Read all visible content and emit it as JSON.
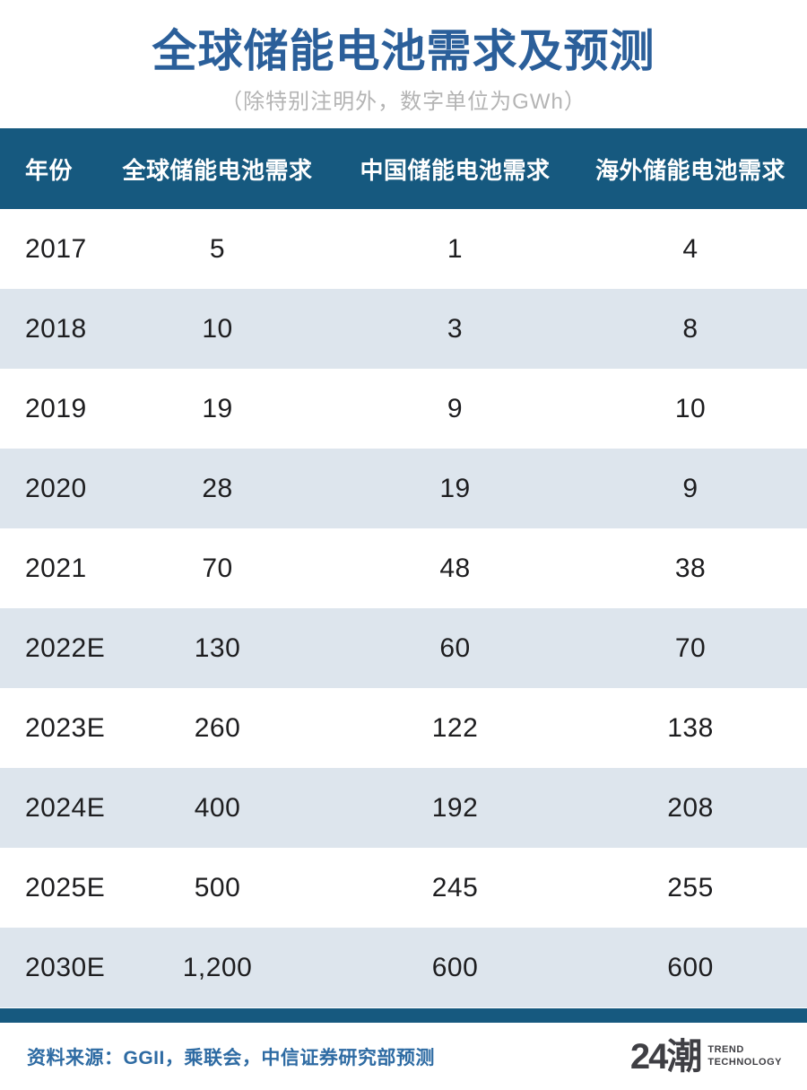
{
  "title": "全球储能电池需求及预测",
  "subtitle": "（除特别注明外，数字单位为GWh）",
  "table": {
    "headers": [
      "年份",
      "全球储能电池需求",
      "中国储能电池需求",
      "海外储能电池需求"
    ],
    "rows": [
      [
        "2017",
        "5",
        "1",
        "4"
      ],
      [
        "2018",
        "10",
        "3",
        "8"
      ],
      [
        "2019",
        "19",
        "9",
        "10"
      ],
      [
        "2020",
        "28",
        "19",
        "9"
      ],
      [
        "2021",
        "70",
        "48",
        "38"
      ],
      [
        "2022E",
        "130",
        "60",
        "70"
      ],
      [
        "2023E",
        "260",
        "122",
        "138"
      ],
      [
        "2024E",
        "400",
        "192",
        "208"
      ],
      [
        "2025E",
        "500",
        "245",
        "255"
      ],
      [
        "2030E",
        "1,200",
        "600",
        "600"
      ]
    ]
  },
  "footer": {
    "source": "资料来源：GGII，乘联会，中信证券研究部预测",
    "logo_mark": "24潮",
    "logo_line1": "TREND",
    "logo_line2": "TECHNOLOGY"
  },
  "colors": {
    "title_blue": "#2b5f9a",
    "header_blue": "#16597f",
    "shaded_row": "#dde5ed",
    "source_blue": "#2e6ba3",
    "logo_charcoal": "#3f3f44",
    "subtitle_gray": "#b4b4b4"
  },
  "chart_data": {
    "type": "table",
    "title": "全球储能电池需求及预测",
    "unit_note": "除特别注明外，数字单位为GWh",
    "categories": [
      "2017",
      "2018",
      "2019",
      "2020",
      "2021",
      "2022E",
      "2023E",
      "2024E",
      "2025E",
      "2030E"
    ],
    "series": [
      {
        "name": "全球储能电池需求",
        "values": [
          5,
          10,
          19,
          28,
          70,
          130,
          260,
          400,
          500,
          1200
        ]
      },
      {
        "name": "中国储能电池需求",
        "values": [
          1,
          3,
          9,
          19,
          48,
          60,
          122,
          192,
          245,
          600
        ]
      },
      {
        "name": "海外储能电池需求",
        "values": [
          4,
          8,
          10,
          9,
          38,
          70,
          138,
          208,
          255,
          600
        ]
      }
    ]
  }
}
